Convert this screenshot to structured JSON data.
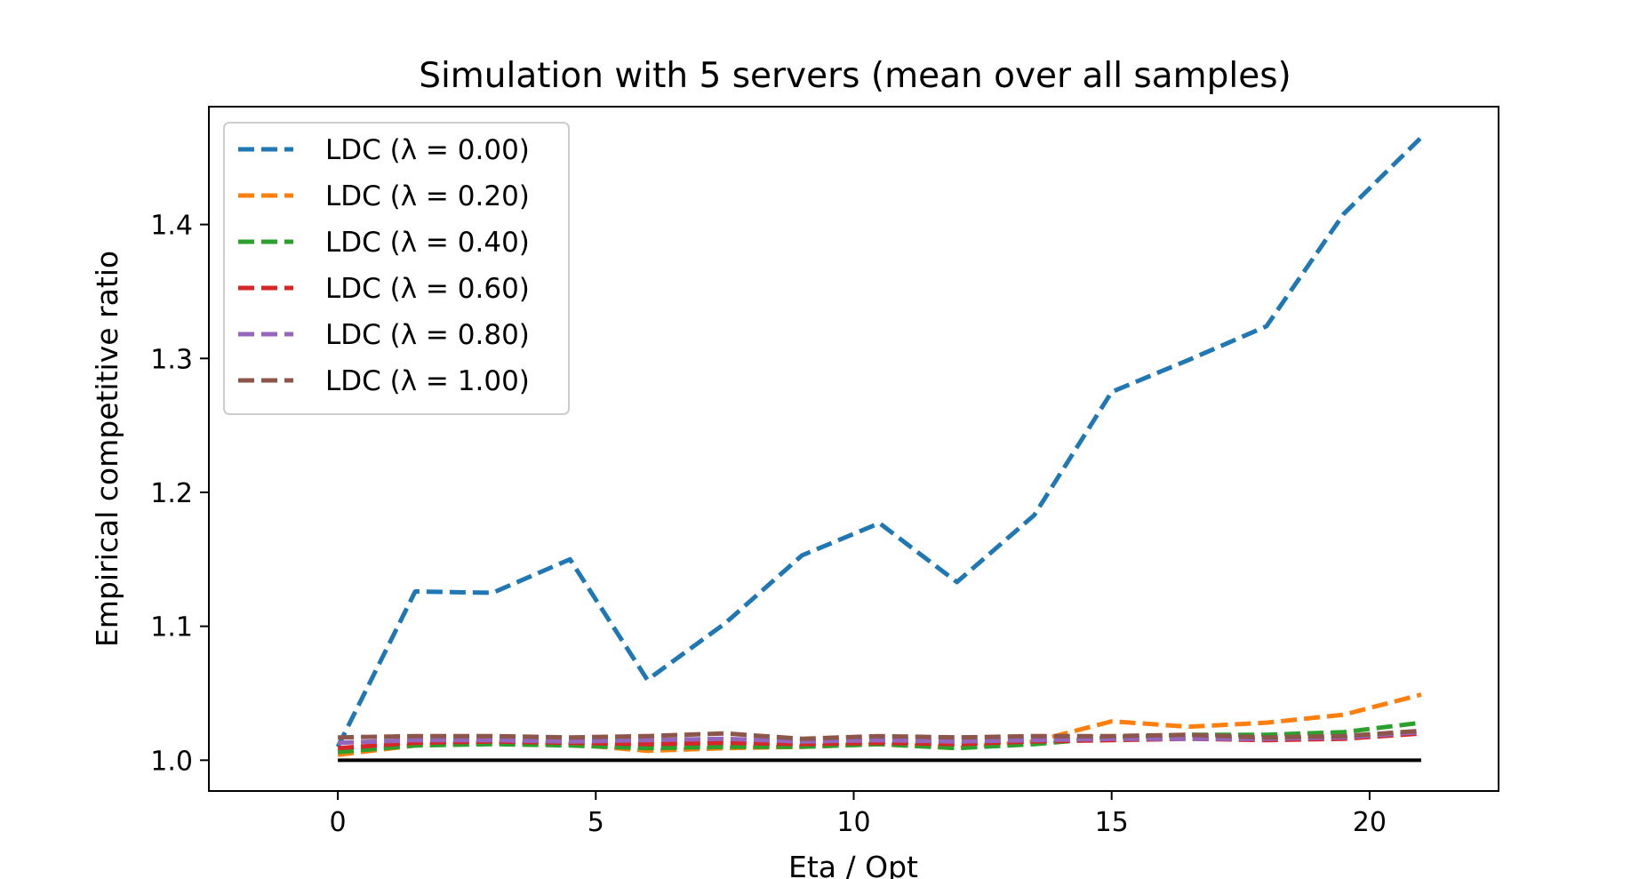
{
  "chart_data": {
    "type": "line",
    "title": "Simulation with 5 servers (mean over all samples)",
    "xlabel": "Eta / Opt",
    "ylabel": "Empirical competitive ratio",
    "xlim": [
      -2.5,
      22.5
    ],
    "ylim": [
      0.977,
      1.488
    ],
    "xticks": [
      0,
      5,
      10,
      15,
      20
    ],
    "xtick_labels": [
      "0",
      "5",
      "10",
      "15",
      "20"
    ],
    "yticks": [
      1.0,
      1.1,
      1.2,
      1.3,
      1.4
    ],
    "ytick_labels": [
      "1.0",
      "1.1",
      "1.2",
      "1.3",
      "1.4"
    ],
    "grid": false,
    "legend_position": "upper-left",
    "x": [
      0,
      1.5,
      3,
      4.5,
      6,
      7.5,
      9,
      10.5,
      12,
      13.5,
      15,
      16.5,
      18,
      19.5,
      21
    ],
    "series": [
      {
        "name": "LDC (λ = 0.00)",
        "color": "#1f77b4",
        "dash": "dashed",
        "values": [
          1.01,
          1.126,
          1.125,
          1.15,
          1.06,
          1.102,
          1.153,
          1.177,
          1.133,
          1.183,
          1.275,
          1.299,
          1.324,
          1.408,
          1.465
        ]
      },
      {
        "name": "LDC (λ = 0.20)",
        "color": "#ff7f0e",
        "dash": "dashed",
        "values": [
          1.004,
          1.011,
          1.013,
          1.012,
          1.007,
          1.009,
          1.01,
          1.012,
          1.009,
          1.014,
          1.029,
          1.025,
          1.028,
          1.034,
          1.049
        ]
      },
      {
        "name": "LDC (λ = 0.40)",
        "color": "#2ca02c",
        "dash": "dashed",
        "values": [
          1.006,
          1.011,
          1.012,
          1.011,
          1.009,
          1.01,
          1.01,
          1.012,
          1.009,
          1.012,
          1.017,
          1.019,
          1.019,
          1.021,
          1.028
        ]
      },
      {
        "name": "LDC (λ = 0.60)",
        "color": "#d62728",
        "dash": "dashed",
        "values": [
          1.009,
          1.013,
          1.014,
          1.013,
          1.012,
          1.013,
          1.012,
          1.013,
          1.012,
          1.014,
          1.015,
          1.016,
          1.015,
          1.016,
          1.02
        ]
      },
      {
        "name": "LDC (λ = 0.80)",
        "color": "#9467bd",
        "dash": "dashed",
        "values": [
          1.013,
          1.015,
          1.015,
          1.014,
          1.015,
          1.016,
          1.014,
          1.015,
          1.014,
          1.015,
          1.016,
          1.016,
          1.016,
          1.017,
          1.021
        ]
      },
      {
        "name": "LDC (λ = 1.00)",
        "color": "#8c564b",
        "dash": "dashed",
        "values": [
          1.017,
          1.018,
          1.018,
          1.017,
          1.018,
          1.02,
          1.016,
          1.018,
          1.017,
          1.018,
          1.018,
          1.019,
          1.017,
          1.018,
          1.022
        ]
      }
    ],
    "reference_line": {
      "y": 1.0,
      "x_range": [
        0,
        21
      ],
      "color": "#000000",
      "style": "solid"
    }
  }
}
